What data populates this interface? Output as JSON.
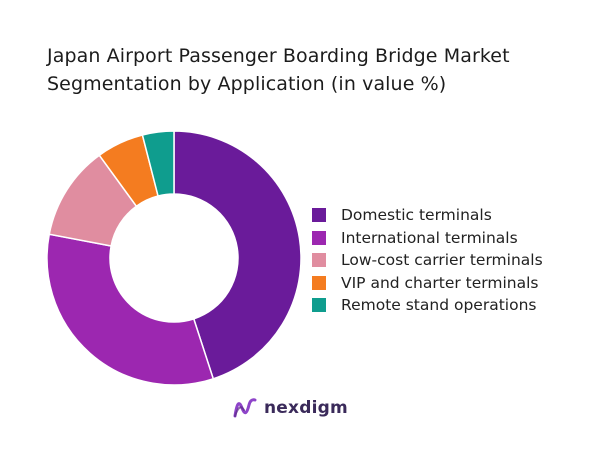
{
  "chart_data": {
    "type": "pie",
    "variant": "donut",
    "title_lines": [
      "Japan Airport Passenger Boarding Bridge Market",
      "Segmentation by Application (in value %)"
    ],
    "categories": [
      "Domestic terminals",
      "International terminals",
      "Low-cost carrier terminals",
      "VIP and charter terminals",
      "Remote stand operations"
    ],
    "values": [
      45,
      33,
      12,
      6,
      4
    ],
    "colors": [
      "#6a1b9a",
      "#9c27b0",
      "#e08da0",
      "#f47c20",
      "#0f9d8e"
    ],
    "legend_position": "right"
  },
  "brand": {
    "name": "nexdigm",
    "icon": "nexdigm-logo-icon"
  }
}
